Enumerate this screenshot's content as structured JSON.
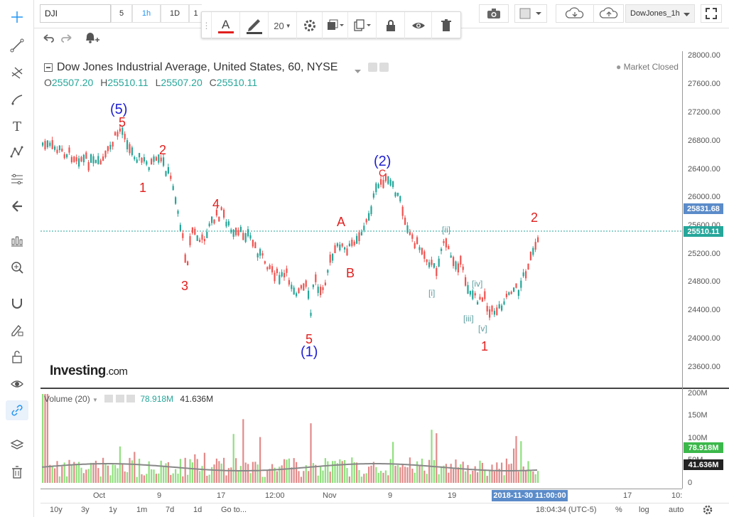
{
  "toolbar": {
    "symbol": "DJI",
    "intervals": [
      "5",
      "1h",
      "1D",
      "1"
    ],
    "selected_interval": "1h",
    "layout_name": "DowJones_1h"
  },
  "draw_bar": {
    "line_width": "20"
  },
  "legend": {
    "title": "Dow Jones Industrial Average, United States, 60, NYSE",
    "o_label": "O",
    "o": "25507.20",
    "h_label": "H",
    "h": "25510.11",
    "l_label": "L",
    "l": "25507.20",
    "c_label": "C",
    "c": "25510.11",
    "market_status": "Market Closed"
  },
  "logo": {
    "brand": "Investing",
    "suffix": ".com"
  },
  "volume": {
    "label": "Volume (20)",
    "value1": "78.918M",
    "value2": "41.636M",
    "axis": [
      "200M",
      "150M",
      "100M",
      "50M",
      "0"
    ]
  },
  "price_axis": [
    "28000.00",
    "27600.00",
    "27200.00",
    "26800.00",
    "26400.00",
    "26000.00",
    "25600.00",
    "25200.00",
    "24800.00",
    "24400.00",
    "24000.00",
    "23600.00"
  ],
  "price_tags": {
    "high": "25831.68",
    "last": "25510.11",
    "vol1": "78.918M",
    "vol2": "41.636M"
  },
  "time_axis": [
    "Oct",
    "9",
    "17",
    "12:00",
    "Nov",
    "9",
    "19",
    "17",
    "10:"
  ],
  "time_tag": "2018-11-30 11:00:00",
  "bottom": {
    "ranges": [
      "10y",
      "3y",
      "1y",
      "1m",
      "7d",
      "1d",
      "Go to..."
    ],
    "clock": "18:04:34 (UTC-5)",
    "pct": "%",
    "log": "log",
    "auto": "auto"
  },
  "waves": {
    "big5": "(5)",
    "r5": "5",
    "r2a": "2",
    "r1a": "1",
    "r3": "3",
    "r4": "4",
    "r5b": "5",
    "big1": "(1)",
    "rA": "A",
    "rB": "B",
    "big2": "(2)",
    "rC": "C",
    "gii": "[ii]",
    "gi": "[i]",
    "giv": "[iv]",
    "giii": "[iii]",
    "gv": "[v]",
    "r1b": "1",
    "r2b": "2"
  },
  "chart_data": {
    "type": "candlestick",
    "symbol": "DJI",
    "interval": "60",
    "y_range": [
      23400,
      28100
    ],
    "last_price": 25510.11,
    "high_marker": 25831.68,
    "volume_range": [
      0,
      200
    ]
  },
  "colors": {
    "up": "#26a69a",
    "down": "#ef5350",
    "accent": "#2196f3",
    "vol_up": "#90e07e",
    "vol_down": "#e28a8a"
  }
}
